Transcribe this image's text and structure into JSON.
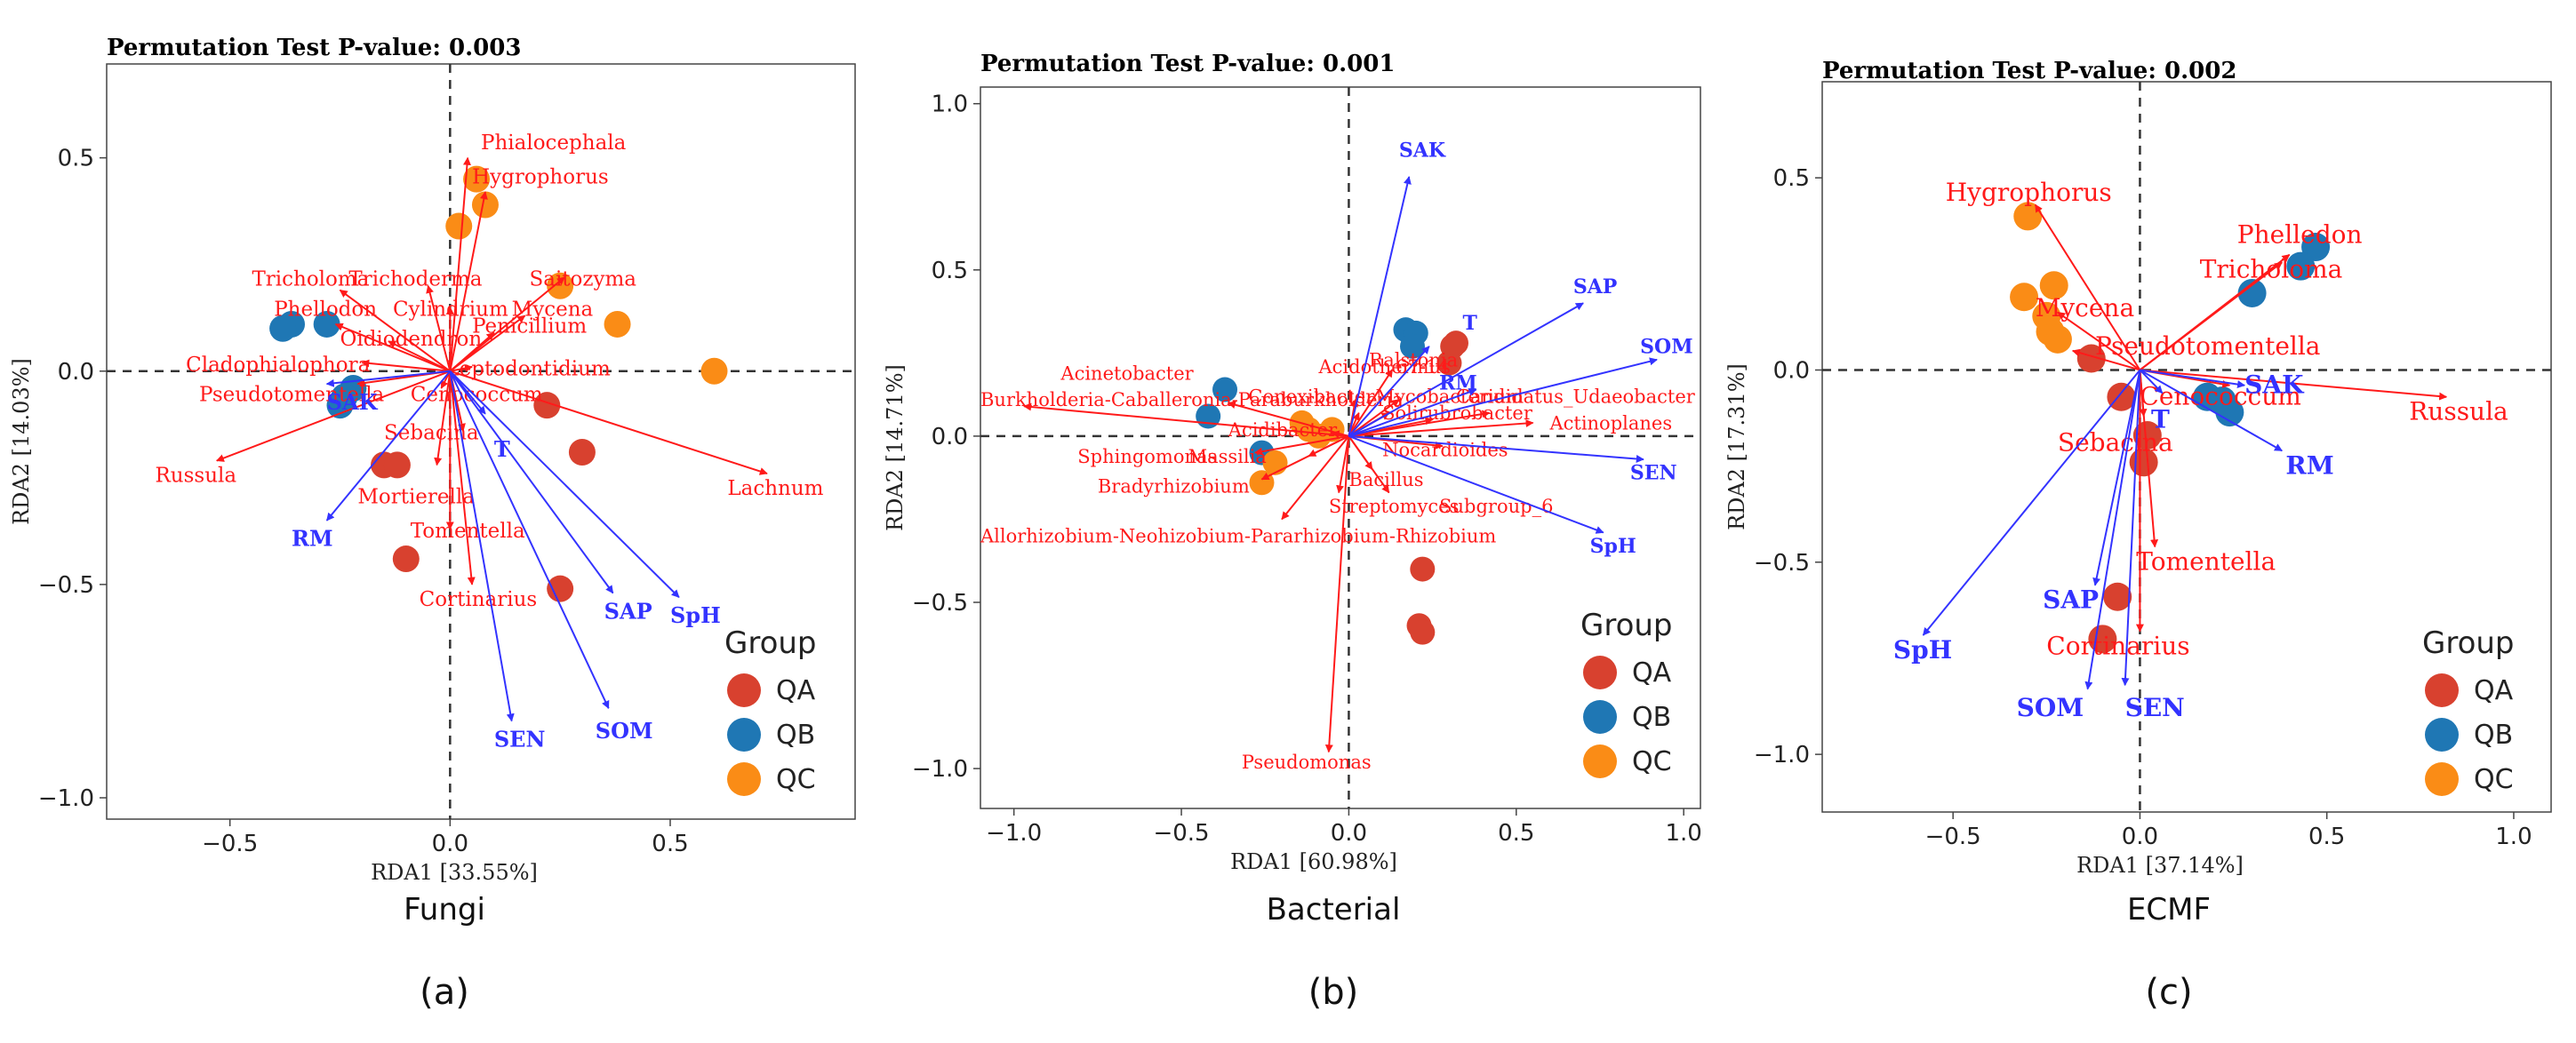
{
  "colors": {
    "QA": "#d8412f",
    "QB": "#1f77b4",
    "QC": "#fa8c16",
    "taxa": "#ff1a1a",
    "env": "#3333ff"
  },
  "chart_data": [
    {
      "type": "scatter",
      "title": "Permutation Test P-value: 0.003",
      "xlabel": "RDA1 [33.55%]",
      "ylabel": "RDA2 [14.03%]",
      "caption": "Fungi",
      "sublabel": "(a)",
      "xlim": [
        -0.78,
        0.92
      ],
      "ylim": [
        -1.05,
        0.72
      ],
      "xticks": [
        {
          "v": -0.5,
          "t": "−0.5"
        },
        {
          "v": 0,
          "t": "0.0"
        },
        {
          "v": 0.5,
          "t": "0.5"
        }
      ],
      "yticks": [
        {
          "v": -1.0,
          "t": "−1.0"
        },
        {
          "v": -0.5,
          "t": "−0.5"
        },
        {
          "v": 0,
          "t": "0.0"
        },
        {
          "v": 0.5,
          "t": "0.5"
        }
      ],
      "legend": {
        "title": "Group",
        "items": [
          "QA",
          "QB",
          "QC"
        ]
      },
      "points": [
        {
          "g": "QA",
          "x": 0.22,
          "y": -0.08
        },
        {
          "g": "QA",
          "x": 0.3,
          "y": -0.19
        },
        {
          "g": "QA",
          "x": -0.15,
          "y": -0.22
        },
        {
          "g": "QA",
          "x": -0.12,
          "y": -0.22
        },
        {
          "g": "QA",
          "x": -0.1,
          "y": -0.44
        },
        {
          "g": "QA",
          "x": 0.25,
          "y": -0.51
        },
        {
          "g": "QB",
          "x": -0.36,
          "y": 0.11
        },
        {
          "g": "QB",
          "x": -0.38,
          "y": 0.1
        },
        {
          "g": "QB",
          "x": -0.28,
          "y": 0.11
        },
        {
          "g": "QB",
          "x": -0.22,
          "y": -0.04
        },
        {
          "g": "QB",
          "x": -0.24,
          "y": -0.06
        },
        {
          "g": "QB",
          "x": -0.25,
          "y": -0.08
        },
        {
          "g": "QC",
          "x": 0.06,
          "y": 0.45
        },
        {
          "g": "QC",
          "x": 0.08,
          "y": 0.39
        },
        {
          "g": "QC",
          "x": 0.02,
          "y": 0.34
        },
        {
          "g": "QC",
          "x": 0.25,
          "y": 0.2
        },
        {
          "g": "QC",
          "x": 0.38,
          "y": 0.11
        },
        {
          "g": "QC",
          "x": 0.6,
          "y": 0.0
        }
      ],
      "taxa": [
        {
          "name": "Phialocephala",
          "x": 0.04,
          "y": 0.5,
          "lx": 0.07,
          "ly": 0.52
        },
        {
          "name": "Hygrophorus",
          "x": 0.08,
          "y": 0.42,
          "lx": 0.05,
          "ly": 0.44
        },
        {
          "name": "Saitozyma",
          "x": 0.26,
          "y": 0.22,
          "lx": 0.18,
          "ly": 0.2
        },
        {
          "name": "Mycena",
          "x": 0.17,
          "y": 0.13,
          "lx": 0.14,
          "ly": 0.13
        },
        {
          "name": "Tricholoma",
          "x": -0.25,
          "y": 0.19,
          "lx": -0.45,
          "ly": 0.2
        },
        {
          "name": "Trichoderma",
          "x": -0.05,
          "y": 0.2,
          "lx": -0.23,
          "ly": 0.2
        },
        {
          "name": "Cylindrium",
          "x": 0.0,
          "y": 0.15,
          "lx": -0.13,
          "ly": 0.13
        },
        {
          "name": "Phellodon",
          "x": -0.26,
          "y": 0.11,
          "lx": -0.4,
          "ly": 0.13
        },
        {
          "name": "Penicillium",
          "x": 0.1,
          "y": 0.09,
          "lx": 0.05,
          "ly": 0.09
        },
        {
          "name": "Oidiodendron",
          "x": -0.14,
          "y": 0.07,
          "lx": -0.25,
          "ly": 0.06
        },
        {
          "name": "Cladophialophora",
          "x": -0.2,
          "y": 0.02,
          "lx": -0.6,
          "ly": 0.0
        },
        {
          "name": "Leptodontidium",
          "x": 0.05,
          "y": 0.01,
          "lx": -0.01,
          "ly": -0.01
        },
        {
          "name": "Pseudotomentella",
          "x": -0.21,
          "y": -0.03,
          "lx": -0.57,
          "ly": -0.07
        },
        {
          "name": "Cenococcum",
          "x": -0.02,
          "y": -0.04,
          "lx": -0.09,
          "ly": -0.07
        },
        {
          "name": "Russula",
          "x": -0.53,
          "y": -0.21,
          "lx": -0.67,
          "ly": -0.26
        },
        {
          "name": "Sebacina",
          "x": 0.03,
          "y": -0.14,
          "lx": -0.15,
          "ly": -0.16
        },
        {
          "name": "Lachnum",
          "x": 0.72,
          "y": -0.24,
          "lx": 0.63,
          "ly": -0.29
        },
        {
          "name": "Mortierella",
          "x": -0.03,
          "y": -0.22,
          "lx": -0.21,
          "ly": -0.31
        },
        {
          "name": "Tomentella",
          "x": 0.0,
          "y": -0.37,
          "lx": -0.09,
          "ly": -0.39
        },
        {
          "name": "Cortinarius",
          "x": 0.05,
          "y": -0.5,
          "lx": -0.07,
          "ly": -0.55
        }
      ],
      "env": [
        {
          "name": "SAK",
          "x": -0.28,
          "y": -0.03,
          "lx": -0.28,
          "ly": -0.09
        },
        {
          "name": "T",
          "x": 0.08,
          "y": -0.1,
          "lx": 0.1,
          "ly": -0.2
        },
        {
          "name": "RM",
          "x": -0.28,
          "y": -0.35,
          "lx": -0.36,
          "ly": -0.41
        },
        {
          "name": "SAP",
          "x": 0.37,
          "y": -0.52,
          "lx": 0.35,
          "ly": -0.58
        },
        {
          "name": "SpH",
          "x": 0.52,
          "y": -0.53,
          "lx": 0.5,
          "ly": -0.59
        },
        {
          "name": "SEN",
          "x": 0.14,
          "y": -0.82,
          "lx": 0.1,
          "ly": -0.88
        },
        {
          "name": "SOM",
          "x": 0.36,
          "y": -0.79,
          "lx": 0.33,
          "ly": -0.86
        }
      ]
    },
    {
      "type": "scatter",
      "title": "Permutation Test P-value: 0.001",
      "xlabel": "RDA1 [60.98%]",
      "ylabel": "RDA2 [14.71%]",
      "caption": "Bacterial",
      "sublabel": "(b)",
      "xlim": [
        -1.1,
        1.05
      ],
      "ylim": [
        -1.12,
        1.05
      ],
      "xticks": [
        {
          "v": -1.0,
          "t": "−1.0"
        },
        {
          "v": -0.5,
          "t": "−0.5"
        },
        {
          "v": 0,
          "t": "0.0"
        },
        {
          "v": 0.5,
          "t": "0.5"
        },
        {
          "v": 1.0,
          "t": "1.0"
        }
      ],
      "yticks": [
        {
          "v": -1.0,
          "t": "−1.0"
        },
        {
          "v": -0.5,
          "t": "−0.5"
        },
        {
          "v": 0,
          "t": "0.0"
        },
        {
          "v": 0.5,
          "t": "0.5"
        },
        {
          "v": 1.0,
          "t": "1.0"
        }
      ],
      "legend": {
        "title": "Group",
        "items": [
          "QA",
          "QB",
          "QC"
        ]
      },
      "points": [
        {
          "g": "QA",
          "x": 0.31,
          "y": 0.27
        },
        {
          "g": "QA",
          "x": 0.3,
          "y": 0.22
        },
        {
          "g": "QA",
          "x": 0.22,
          "y": -0.4
        },
        {
          "g": "QA",
          "x": 0.21,
          "y": -0.57
        },
        {
          "g": "QA",
          "x": 0.22,
          "y": -0.59
        },
        {
          "g": "QA",
          "x": 0.32,
          "y": 0.28
        },
        {
          "g": "QB",
          "x": 0.17,
          "y": 0.32
        },
        {
          "g": "QB",
          "x": 0.2,
          "y": 0.31
        },
        {
          "g": "QB",
          "x": -0.37,
          "y": 0.14
        },
        {
          "g": "QB",
          "x": -0.42,
          "y": 0.06
        },
        {
          "g": "QB",
          "x": -0.26,
          "y": -0.05
        },
        {
          "g": "QB",
          "x": 0.19,
          "y": 0.27
        },
        {
          "g": "QC",
          "x": -0.14,
          "y": 0.04
        },
        {
          "g": "QC",
          "x": -0.12,
          "y": 0.02
        },
        {
          "g": "QC",
          "x": -0.22,
          "y": -0.08
        },
        {
          "g": "QC",
          "x": -0.26,
          "y": -0.14
        },
        {
          "g": "QC",
          "x": -0.09,
          "y": 0.0
        },
        {
          "g": "QC",
          "x": -0.05,
          "y": 0.02
        }
      ],
      "taxa": [
        {
          "name": "Ralstonia",
          "x": 0.13,
          "y": 0.2,
          "lx": 0.06,
          "ly": 0.21
        },
        {
          "name": "Acinetobacter",
          "x": -0.36,
          "y": 0.1,
          "lx": -0.86,
          "ly": 0.17
        },
        {
          "name": "Acidothermus",
          "x": 0.02,
          "y": 0.11,
          "lx": -0.09,
          "ly": 0.19
        },
        {
          "name": "67-14",
          "x": 0.15,
          "y": 0.11,
          "lx": 0.14,
          "ly": 0.19
        },
        {
          "name": "Conexibacter",
          "x": 0.03,
          "y": 0.07,
          "lx": -0.3,
          "ly": 0.1
        },
        {
          "name": "Mycobacterium",
          "x": 0.12,
          "y": 0.07,
          "lx": 0.08,
          "ly": 0.1
        },
        {
          "name": "Candidatus_Udaeobacter",
          "x": 0.42,
          "y": 0.07,
          "lx": 0.32,
          "ly": 0.1
        },
        {
          "name": "Burkholderia-Caballeronia-Paraburkholderia",
          "x": -0.97,
          "y": 0.09,
          "lx": -1.1,
          "ly": 0.09
        },
        {
          "name": "Solirubrobacter",
          "x": 0.25,
          "y": 0.05,
          "lx": 0.1,
          "ly": 0.05
        },
        {
          "name": "Actinoplanes",
          "x": 0.55,
          "y": 0.04,
          "lx": 0.6,
          "ly": 0.02
        },
        {
          "name": "Acidibacter",
          "x": -0.05,
          "y": 0.01,
          "lx": -0.36,
          "ly": 0.0
        },
        {
          "name": "Sphingomonas",
          "x": -0.28,
          "y": -0.05,
          "lx": -0.81,
          "ly": -0.08
        },
        {
          "name": "Massilia",
          "x": -0.12,
          "y": -0.06,
          "lx": -0.48,
          "ly": -0.08
        },
        {
          "name": "Nocardioides",
          "x": 0.28,
          "y": -0.03,
          "lx": 0.1,
          "ly": -0.06
        },
        {
          "name": "Bradyrhizobium",
          "x": -0.26,
          "y": -0.13,
          "lx": -0.75,
          "ly": -0.17
        },
        {
          "name": "Bacillus",
          "x": 0.07,
          "y": -0.1,
          "lx": 0.0,
          "ly": -0.15
        },
        {
          "name": "Streptomyces",
          "x": -0.03,
          "y": -0.17,
          "lx": -0.06,
          "ly": -0.23
        },
        {
          "name": "Subgroup_6",
          "x": 0.12,
          "y": -0.17,
          "lx": 0.27,
          "ly": -0.23
        },
        {
          "name": "Allorhizobium-Neohizobium-Pararhizobium-Rhizobium",
          "x": -0.2,
          "y": -0.25,
          "lx": -1.1,
          "ly": -0.32
        },
        {
          "name": "Pseudomonas",
          "x": -0.06,
          "y": -0.95,
          "lx": -0.32,
          "ly": -1.0
        }
      ],
      "env": [
        {
          "name": "SAK",
          "x": 0.18,
          "y": 0.78,
          "lx": 0.15,
          "ly": 0.84
        },
        {
          "name": "SAP",
          "x": 0.7,
          "y": 0.4,
          "lx": 0.67,
          "ly": 0.43
        },
        {
          "name": "T",
          "x": 0.24,
          "y": 0.27,
          "lx": 0.34,
          "ly": 0.32
        },
        {
          "name": "SOM",
          "x": 0.92,
          "y": 0.23,
          "lx": 0.87,
          "ly": 0.25
        },
        {
          "name": "RM",
          "x": 0.38,
          "y": 0.14,
          "lx": 0.27,
          "ly": 0.14
        },
        {
          "name": "SEN",
          "x": 0.88,
          "y": -0.07,
          "lx": 0.84,
          "ly": -0.13
        },
        {
          "name": "SpH",
          "x": 0.76,
          "y": -0.29,
          "lx": 0.72,
          "ly": -0.35
        }
      ]
    },
    {
      "type": "scatter",
      "title": "Permutation Test P-value: 0.002",
      "xlabel": "RDA1 [37.14%]",
      "ylabel": "RDA2 [17.31%]",
      "caption": "ECMF",
      "sublabel": "(c)",
      "xlim": [
        -0.85,
        1.1
      ],
      "ylim": [
        -1.15,
        0.75
      ],
      "xticks": [
        {
          "v": -0.5,
          "t": "−0.5"
        },
        {
          "v": 0,
          "t": "0.0"
        },
        {
          "v": 0.5,
          "t": "0.5"
        },
        {
          "v": 1.0,
          "t": "1.0"
        }
      ],
      "yticks": [
        {
          "v": -1.0,
          "t": "−1.0"
        },
        {
          "v": -0.5,
          "t": "−0.5"
        },
        {
          "v": 0,
          "t": "0.0"
        },
        {
          "v": 0.5,
          "t": "0.5"
        }
      ],
      "legend": {
        "title": "Group",
        "items": [
          "QA",
          "QB",
          "QC"
        ]
      },
      "points": [
        {
          "g": "QA",
          "x": -0.13,
          "y": 0.03
        },
        {
          "g": "QA",
          "x": -0.05,
          "y": -0.07
        },
        {
          "g": "QA",
          "x": 0.02,
          "y": -0.17
        },
        {
          "g": "QA",
          "x": 0.01,
          "y": -0.24
        },
        {
          "g": "QA",
          "x": -0.06,
          "y": -0.59
        },
        {
          "g": "QA",
          "x": -0.1,
          "y": -0.7
        },
        {
          "g": "QB",
          "x": 0.47,
          "y": 0.32
        },
        {
          "g": "QB",
          "x": 0.43,
          "y": 0.27
        },
        {
          "g": "QB",
          "x": 0.3,
          "y": 0.2
        },
        {
          "g": "QB",
          "x": 0.18,
          "y": -0.07
        },
        {
          "g": "QB",
          "x": 0.22,
          "y": -0.08
        },
        {
          "g": "QB",
          "x": 0.24,
          "y": -0.11
        },
        {
          "g": "QC",
          "x": -0.3,
          "y": 0.4
        },
        {
          "g": "QC",
          "x": -0.23,
          "y": 0.22
        },
        {
          "g": "QC",
          "x": -0.31,
          "y": 0.19
        },
        {
          "g": "QC",
          "x": -0.24,
          "y": 0.1
        },
        {
          "g": "QC",
          "x": -0.22,
          "y": 0.08
        },
        {
          "g": "QC",
          "x": -0.25,
          "y": 0.14
        }
      ],
      "taxa": [
        {
          "name": "Hygrophorus",
          "x": -0.28,
          "y": 0.43,
          "lx": -0.52,
          "ly": 0.44
        },
        {
          "name": "Phelledon",
          "x": 0.4,
          "y": 0.3,
          "lx": 0.26,
          "ly": 0.33
        },
        {
          "name": "Tricholoma",
          "x": 0.38,
          "y": 0.28,
          "lx": 0.16,
          "ly": 0.24
        },
        {
          "name": "Mycena",
          "x": -0.22,
          "y": 0.15,
          "lx": -0.28,
          "ly": 0.14
        },
        {
          "name": "Pseudotomentella",
          "x": -0.18,
          "y": 0.05,
          "lx": -0.12,
          "ly": 0.04
        },
        {
          "name": "Cenococcum",
          "x": 0.24,
          "y": -0.04,
          "lx": 0.0,
          "ly": -0.09
        },
        {
          "name": "Russula",
          "x": 0.82,
          "y": -0.07,
          "lx": 0.72,
          "ly": -0.13
        },
        {
          "name": "Sebacina",
          "x": 0.01,
          "y": -0.12,
          "lx": -0.22,
          "ly": -0.21
        },
        {
          "name": "Tomentella",
          "x": 0.04,
          "y": -0.46,
          "lx": -0.01,
          "ly": -0.52
        },
        {
          "name": "Cortinarius",
          "x": 0.0,
          "y": -0.68,
          "lx": -0.25,
          "ly": -0.74
        }
      ],
      "env": [
        {
          "name": "SAK",
          "x": 0.28,
          "y": -0.04,
          "lx": 0.28,
          "ly": -0.06
        },
        {
          "name": "T",
          "x": 0.06,
          "y": -0.06,
          "lx": 0.03,
          "ly": -0.15
        },
        {
          "name": "RM",
          "x": 0.38,
          "y": -0.21,
          "lx": 0.39,
          "ly": -0.27
        },
        {
          "name": "SAP",
          "x": -0.12,
          "y": -0.56,
          "lx": -0.26,
          "ly": -0.62
        },
        {
          "name": "SpH",
          "x": -0.58,
          "y": -0.69,
          "lx": -0.66,
          "ly": -0.75
        },
        {
          "name": "SOM",
          "x": -0.14,
          "y": -0.83,
          "lx": -0.33,
          "ly": -0.9
        },
        {
          "name": "SEN",
          "x": -0.04,
          "y": -0.82,
          "lx": -0.04,
          "ly": -0.9
        }
      ]
    }
  ]
}
